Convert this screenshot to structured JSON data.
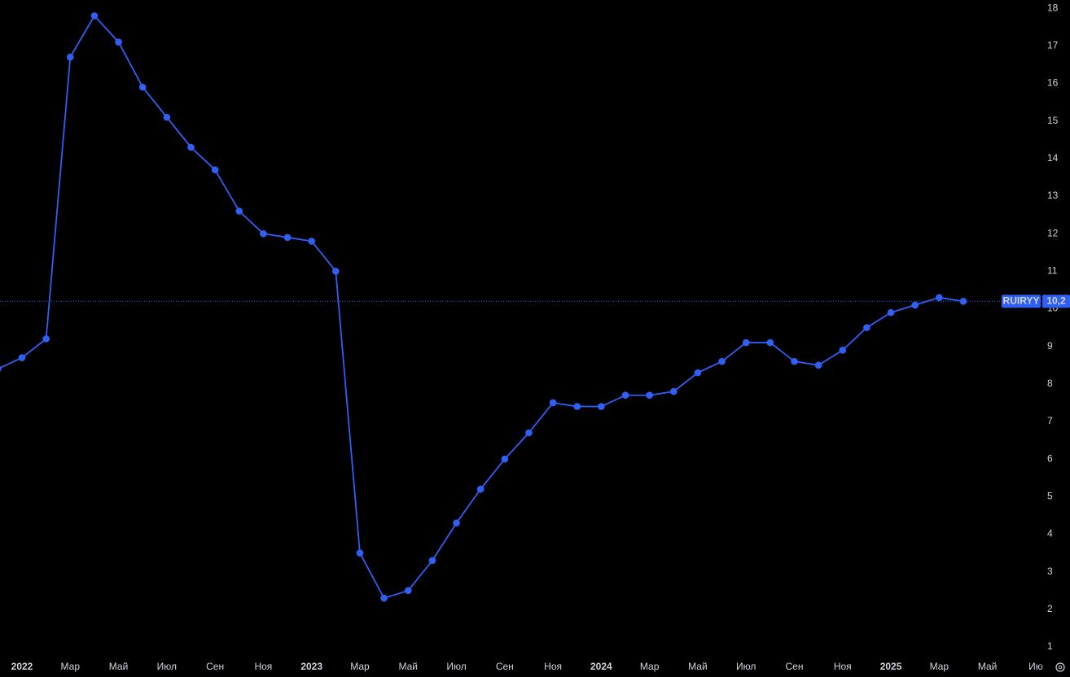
{
  "chart_data": {
    "type": "line",
    "categories": [
      null,
      "2022",
      null,
      "Мар",
      null,
      "Май",
      null,
      "Июл",
      null,
      "Сен",
      null,
      "Ноя",
      null,
      "2023",
      null,
      "Мар",
      null,
      "Май",
      null,
      "Июл",
      null,
      "Сен",
      null,
      "Ноя",
      null,
      "2024",
      null,
      "Мар",
      null,
      "Май",
      null,
      "Июл",
      null,
      "Сен",
      null,
      "Ноя",
      null,
      "2025",
      null,
      "Мар",
      null,
      "Май",
      null,
      "Ию"
    ],
    "series": [
      {
        "name": "RUIRYY",
        "color": "#2f5ff5",
        "values": [
          8.4,
          8.7,
          9.2,
          16.7,
          17.8,
          17.1,
          15.9,
          15.1,
          14.3,
          13.7,
          12.6,
          12.0,
          11.9,
          11.8,
          11.0,
          3.5,
          2.3,
          2.5,
          3.3,
          4.3,
          5.2,
          6.0,
          6.7,
          7.5,
          7.4,
          7.4,
          7.7,
          7.7,
          7.8,
          8.3,
          8.6,
          9.1,
          9.1,
          8.6,
          8.5,
          8.9,
          9.5,
          9.9,
          10.1,
          10.3,
          10.2,
          null,
          null,
          null
        ]
      }
    ],
    "last_value": {
      "value": 10.2,
      "label": "10,2"
    },
    "ylim": [
      0.72,
      18.22
    ],
    "yticks": [
      1,
      2,
      3,
      4,
      5,
      6,
      7,
      8,
      9,
      10,
      11,
      12,
      13,
      14,
      15,
      16,
      17,
      18
    ],
    "grid": false
  }
}
